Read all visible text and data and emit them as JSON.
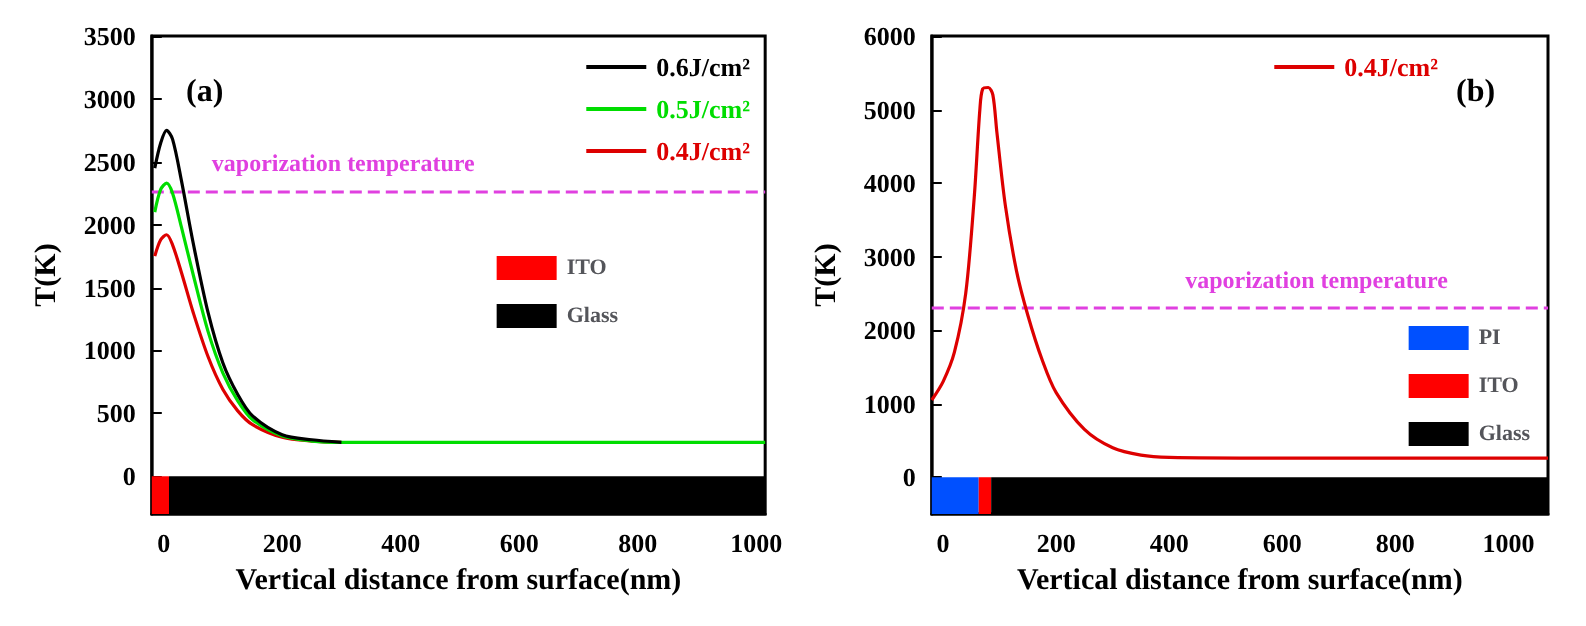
{
  "chart_data": [
    {
      "type": "line",
      "xlabel": "Vertical distance from surface(nm)",
      "ylabel": "T(K)",
      "xlim": [
        -20,
        1015
      ],
      "ylim": [
        -300,
        3500
      ],
      "xticks": [
        0,
        200,
        400,
        600,
        800,
        1000
      ],
      "yticks": [
        0,
        500,
        1000,
        1500,
        2000,
        2500,
        3000,
        3500
      ],
      "legend": "top right",
      "grid": false,
      "marker": "none",
      "line_style": "solid",
      "annotations": [
        "(a)"
      ],
      "ref_lines": [
        {
          "axis": "y",
          "value": 2270,
          "label": "vaporization temperature",
          "color": "#e040e0",
          "line_style": "dashed"
        }
      ],
      "bands": [
        {
          "axis": "x",
          "from": -20,
          "to": 9,
          "label": "ITO",
          "color": "#ff0000"
        },
        {
          "axis": "x",
          "from": 9,
          "to": 1015,
          "label": "Glass",
          "color": "#000000"
        }
      ],
      "series": [
        {
          "name": "0.6J/cm²",
          "color": "#000000",
          "x": [
            -15,
            -5,
            5,
            15,
            30,
            50,
            75,
            100,
            125,
            150,
            200,
            250,
            300
          ],
          "values": [
            2450,
            2650,
            2750,
            2680,
            2350,
            1850,
            1300,
            900,
            650,
            480,
            330,
            290,
            270
          ]
        },
        {
          "name": "0.5J/cm²",
          "color": "#00dd00",
          "x": [
            -15,
            -5,
            5,
            15,
            30,
            50,
            75,
            100,
            125,
            150,
            200,
            250,
            300,
            400,
            600,
            800,
            1015
          ],
          "values": [
            2100,
            2280,
            2330,
            2250,
            1980,
            1600,
            1150,
            820,
            600,
            450,
            320,
            280,
            270,
            270,
            270,
            270,
            270
          ]
        },
        {
          "name": "0.4J/cm²",
          "color": "#dd0000",
          "x": [
            -15,
            -5,
            5,
            15,
            30,
            50,
            75,
            100,
            125,
            150,
            200,
            250,
            300
          ],
          "values": [
            1750,
            1880,
            1920,
            1840,
            1620,
            1300,
            950,
            690,
            520,
            410,
            310,
            280,
            270
          ]
        }
      ]
    },
    {
      "type": "line",
      "xlabel": "Vertical distance from surface(nm)",
      "ylabel": "T(K)",
      "xlim": [
        -20,
        1070
      ],
      "ylim": [
        -500,
        6000
      ],
      "xticks": [
        0,
        200,
        400,
        600,
        800,
        1000
      ],
      "yticks": [
        0,
        1000,
        2000,
        3000,
        4000,
        5000,
        6000
      ],
      "legend": "top right",
      "grid": false,
      "marker": "none",
      "line_style": "solid",
      "annotations": [
        "(b)"
      ],
      "ref_lines": [
        {
          "axis": "y",
          "value": 2300,
          "label": "vaporization temperature",
          "color": "#e040e0",
          "line_style": "dashed"
        }
      ],
      "bands": [
        {
          "axis": "x",
          "from": -20,
          "to": 63,
          "label": "PI",
          "color": "#0050ff"
        },
        {
          "axis": "x",
          "from": 63,
          "to": 85,
          "label": "ITO",
          "color": "#ff0000"
        },
        {
          "axis": "x",
          "from": 85,
          "to": 1070,
          "label": "Glass",
          "color": "#000000"
        }
      ],
      "series": [
        {
          "name": "0.4J/cm²",
          "color": "#dd0000",
          "x": [
            -20,
            0,
            20,
            40,
            55,
            65,
            70,
            80,
            88,
            95,
            110,
            130,
            150,
            175,
            200,
            250,
            300,
            350,
            400,
            600,
            800,
            1070
          ],
          "values": [
            1050,
            1300,
            1700,
            2500,
            3800,
            5000,
            5280,
            5300,
            5200,
            4700,
            3700,
            2800,
            2200,
            1600,
            1150,
            650,
            400,
            300,
            270,
            260,
            260,
            260
          ]
        }
      ]
    }
  ]
}
